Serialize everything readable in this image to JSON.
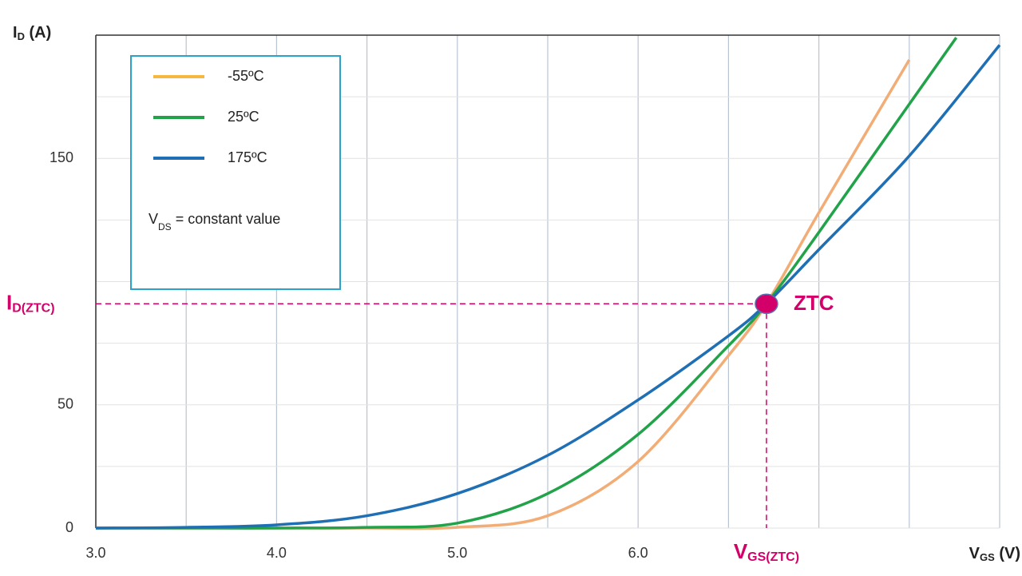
{
  "chart_data": {
    "type": "line",
    "y_label": [
      "I",
      "D",
      " (A)"
    ],
    "x_label": [
      "V",
      "GS",
      " (V)"
    ],
    "xlim": [
      3,
      8
    ],
    "ylim": [
      0,
      200
    ],
    "xticks": [
      {
        "value": 3,
        "label": "3.0"
      },
      {
        "value": 4,
        "label": "4.0"
      },
      {
        "value": 5,
        "label": "5.0"
      },
      {
        "value": 6,
        "label": "6.0"
      },
      {
        "value": 6.71,
        "label": "V",
        "sub": "GS(ZTC)"
      }
    ],
    "yticks": [
      0,
      50,
      150,
      {
        "value": 91,
        "label": "I",
        "sub": "D(ZTC)"
      }
    ],
    "xgrid": [
      3,
      3.5,
      4,
      4.5,
      5,
      5.5,
      6,
      6.5,
      7,
      7.5,
      8
    ],
    "ygrid": [
      0,
      25,
      50,
      75,
      100,
      125,
      150,
      175,
      200
    ],
    "series": [
      {
        "name": "-55ºC",
        "color": "#f2ad76",
        "legend_color": "#f5b942",
        "x": [
          3,
          3.5,
          4,
          4.5,
          5,
          5.5,
          6,
          6.5,
          6.71,
          7,
          7.5
        ],
        "values": [
          0,
          0,
          0,
          0,
          0.3,
          5,
          27,
          70,
          91,
          128,
          190
        ]
      },
      {
        "name": "25ºC",
        "color": "#22a34a",
        "x": [
          3,
          3.5,
          4,
          4.5,
          5,
          5.5,
          6,
          6.5,
          6.71,
          7,
          7.5,
          7.76
        ],
        "values": [
          0,
          0,
          0,
          0.3,
          2,
          14,
          38,
          74,
          91,
          120,
          172,
          199
        ]
      },
      {
        "name": "175ºC",
        "color": "#1f6fb5",
        "x": [
          3,
          3.5,
          4,
          4.5,
          5,
          5.5,
          6,
          6.5,
          6.71,
          7,
          7.5,
          8
        ],
        "values": [
          0,
          0.3,
          1.3,
          5,
          14,
          29.5,
          52,
          78,
          91,
          113,
          151,
          196
        ]
      }
    ],
    "legend_note": [
      "V",
      "DS",
      " = constant value"
    ],
    "ztc": {
      "x": 6.71,
      "y": 91,
      "label": "ZTC",
      "color": "#d4006a"
    },
    "grid": true
  }
}
